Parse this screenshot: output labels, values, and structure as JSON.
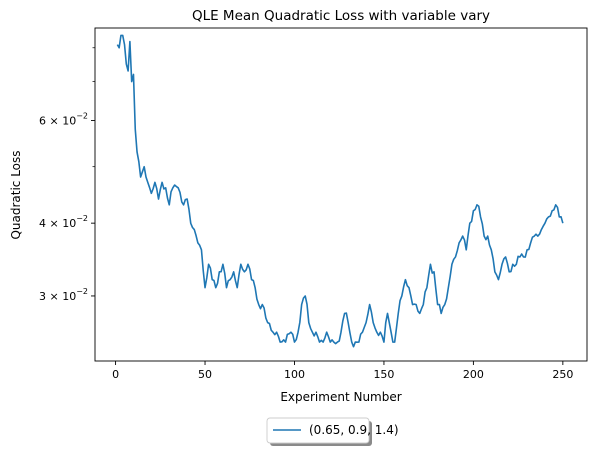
{
  "chart_data": {
    "type": "line",
    "title": "QLE Mean Quadratic Loss with variable vary",
    "xlabel": "Experiment Number",
    "ylabel": "Quadratic Loss",
    "xlim": [
      -11.5,
      263.5
    ],
    "ylim": [
      0.0232,
      0.0865
    ],
    "yscale": "log",
    "x_ticks": [
      0,
      50,
      100,
      150,
      200,
      250
    ],
    "y_major_ticks": [
      0.03,
      0.04,
      0.06
    ],
    "y_major_tick_labels": [
      {
        "base": "3",
        "exponent": "−2"
      },
      {
        "base": "4",
        "exponent": "−2"
      },
      {
        "base": "6",
        "exponent": "−2"
      }
    ],
    "y_minor_ticks": [
      0.05,
      0.07,
      0.08
    ],
    "grid": false,
    "legend_position": "below-center",
    "colors": {
      "series": "#1f77b4"
    },
    "series": [
      {
        "name": "(0.65, 0.9, 1.4)",
        "anchors_x": [
          1,
          2,
          3,
          4,
          5,
          6,
          7,
          8,
          9,
          10,
          11,
          12,
          13,
          14,
          15,
          16,
          17,
          18,
          20,
          22,
          24,
          26,
          28,
          30,
          32,
          35,
          38,
          40,
          42,
          44,
          46,
          48,
          50,
          52,
          54,
          56,
          58,
          60,
          62,
          64,
          66,
          68,
          70,
          72,
          74,
          76,
          78,
          80,
          82,
          85,
          88,
          90,
          92,
          95,
          98,
          100,
          102,
          104,
          106,
          108,
          110,
          112,
          114,
          116,
          118,
          120,
          122,
          124,
          126,
          128,
          130,
          132,
          134,
          136,
          138,
          140,
          142,
          144,
          146,
          148,
          150,
          152,
          154,
          156,
          158,
          160,
          162,
          164,
          166,
          168,
          170,
          172,
          174,
          176,
          178,
          180,
          182,
          184,
          186,
          188,
          190,
          192,
          194,
          196,
          198,
          200,
          202,
          204,
          206,
          208,
          210,
          212,
          214,
          216,
          218,
          220,
          222,
          224,
          226,
          228,
          230,
          232,
          234,
          236,
          238,
          240,
          242,
          244,
          246,
          248,
          250
        ],
        "anchors_y": [
          0.081,
          0.08,
          0.084,
          0.084,
          0.081,
          0.075,
          0.073,
          0.082,
          0.07,
          0.072,
          0.058,
          0.053,
          0.051,
          0.048,
          0.049,
          0.05,
          0.048,
          0.047,
          0.045,
          0.047,
          0.044,
          0.047,
          0.046,
          0.043,
          0.046,
          0.046,
          0.043,
          0.044,
          0.04,
          0.039,
          0.037,
          0.036,
          0.031,
          0.034,
          0.032,
          0.031,
          0.033,
          0.034,
          0.031,
          0.032,
          0.033,
          0.031,
          0.034,
          0.033,
          0.034,
          0.032,
          0.031,
          0.029,
          0.029,
          0.027,
          0.026,
          0.026,
          0.025,
          0.025,
          0.026,
          0.025,
          0.026,
          0.029,
          0.03,
          0.027,
          0.026,
          0.026,
          0.025,
          0.025,
          0.026,
          0.025,
          0.025,
          0.025,
          0.026,
          0.028,
          0.027,
          0.025,
          0.025,
          0.025,
          0.026,
          0.027,
          0.029,
          0.027,
          0.026,
          0.026,
          0.025,
          0.028,
          0.026,
          0.025,
          0.028,
          0.03,
          0.032,
          0.031,
          0.029,
          0.029,
          0.028,
          0.029,
          0.031,
          0.034,
          0.033,
          0.029,
          0.028,
          0.029,
          0.031,
          0.034,
          0.035,
          0.037,
          0.038,
          0.036,
          0.04,
          0.042,
          0.043,
          0.041,
          0.038,
          0.038,
          0.036,
          0.033,
          0.032,
          0.034,
          0.035,
          0.033,
          0.034,
          0.034,
          0.035,
          0.035,
          0.036,
          0.037,
          0.038,
          0.038,
          0.039,
          0.04,
          0.041,
          0.042,
          0.043,
          0.041,
          0.04
        ]
      }
    ]
  }
}
